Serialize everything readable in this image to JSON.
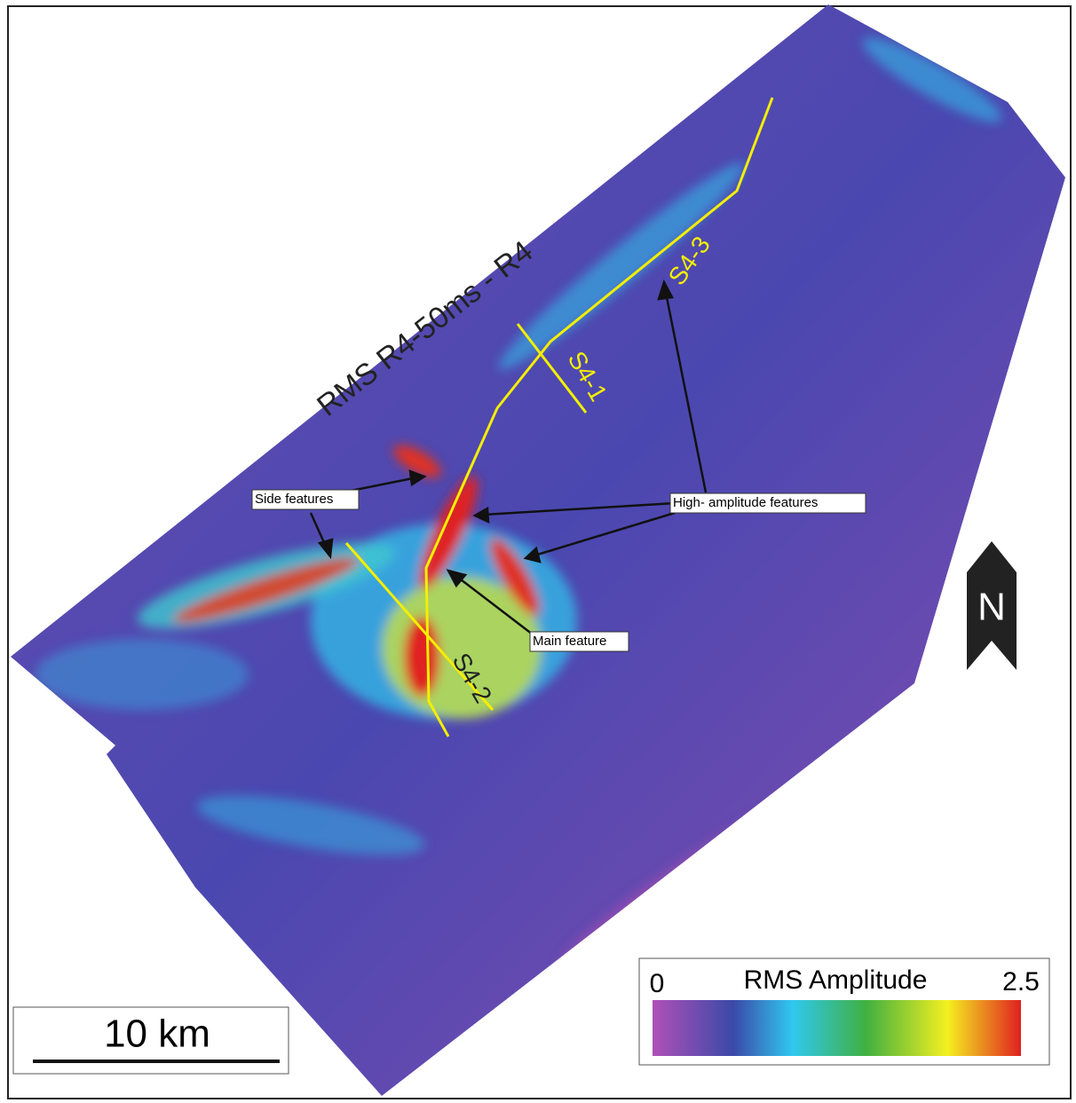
{
  "map": {
    "title": "RMS R4-50ms - R4",
    "lines": [
      {
        "label": "S4-3"
      },
      {
        "label": "S4-1"
      },
      {
        "label": "S4-2"
      }
    ],
    "annotations": [
      {
        "label": "Side features"
      },
      {
        "label": "High- amplitude features"
      },
      {
        "label": "Main feature"
      }
    ],
    "north": "N",
    "scale_bar": "10 km",
    "legend": {
      "title": "RMS Amplitude",
      "min": 0,
      "max": 2.5
    }
  }
}
